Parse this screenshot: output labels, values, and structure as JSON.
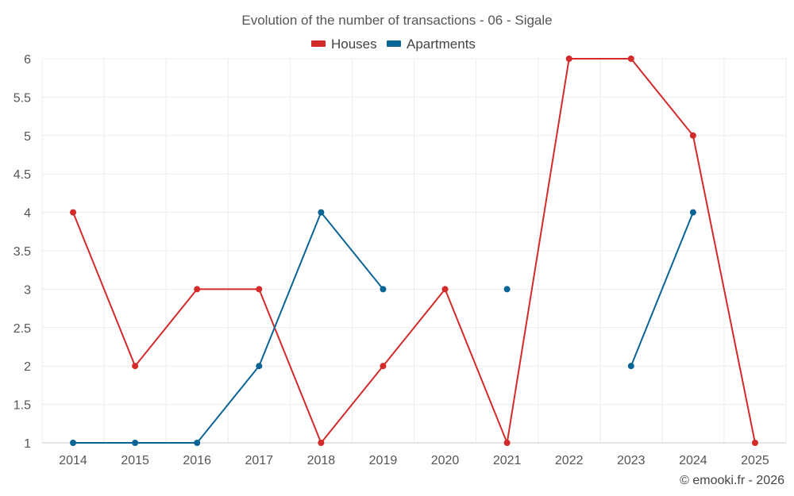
{
  "chart_data": {
    "type": "line",
    "title": "Evolution of the number of transactions - 06 - Sigale",
    "xlabel": "",
    "ylabel": "",
    "categories": [
      "2014",
      "2015",
      "2016",
      "2017",
      "2018",
      "2019",
      "2020",
      "2021",
      "2022",
      "2023",
      "2024",
      "2025"
    ],
    "ylim": [
      1,
      6
    ],
    "yticks": [
      "1",
      "1.5",
      "2",
      "2.5",
      "3",
      "3.5",
      "4",
      "4.5",
      "5",
      "5.5",
      "6"
    ],
    "grid": true,
    "legend_position": "top-center",
    "series": [
      {
        "name": "Houses",
        "color": "#d32a2a",
        "values": [
          4,
          2,
          3,
          3,
          1,
          2,
          3,
          1,
          6,
          6,
          5,
          1
        ]
      },
      {
        "name": "Apartments",
        "color": "#0b6496",
        "values": [
          1,
          1,
          1,
          2,
          4,
          3,
          null,
          3,
          null,
          2,
          4,
          null
        ]
      }
    ]
  },
  "credit": "© emooki.fr - 2026"
}
